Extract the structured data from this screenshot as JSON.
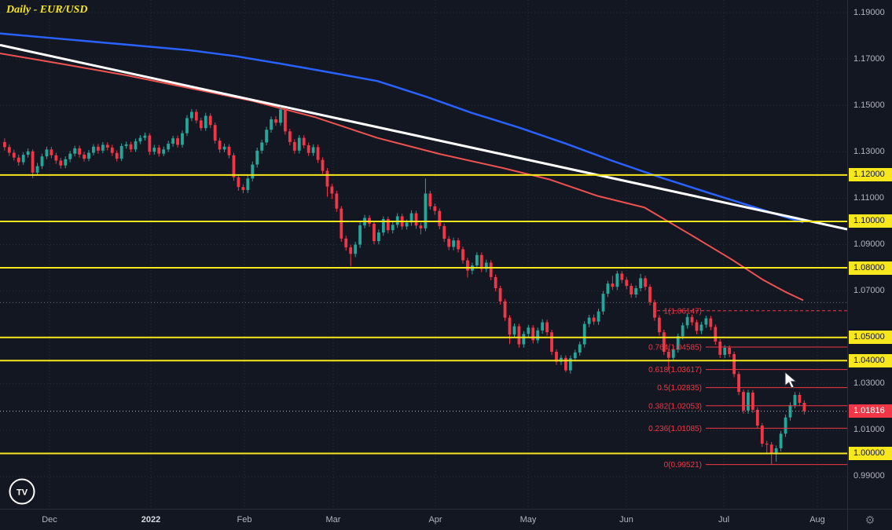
{
  "title": "Daily - EUR/USD",
  "icons": {
    "tradingview": "TV",
    "gear": "⚙"
  },
  "colors": {
    "background": "#131722",
    "grid": "#2a2e39",
    "up": "#26a69a",
    "down": "#f23645",
    "ma_fast_red": "#ef5350",
    "ma_slow_blue": "#2962ff",
    "trendline_white": "#ffffff",
    "level_yellow": "#f8e71c",
    "fib_red": "#f23645",
    "axis_text": "#b2b5be",
    "price_badge": "#f23645",
    "dotted_ray": "#6a7179",
    "current_price_line": "#b2b5be"
  },
  "price_axis": {
    "labels": [
      {
        "text": "1.19000",
        "value": 1.19,
        "style": "plain"
      },
      {
        "text": "1.17000",
        "value": 1.17,
        "style": "plain"
      },
      {
        "text": "1.15000",
        "value": 1.15,
        "style": "plain"
      },
      {
        "text": "1.13000",
        "value": 1.13,
        "style": "plain"
      },
      {
        "text": "1.12000",
        "value": 1.12,
        "style": "yellow"
      },
      {
        "text": "1.11000",
        "value": 1.11,
        "style": "plain"
      },
      {
        "text": "1.10000",
        "value": 1.1,
        "style": "yellow"
      },
      {
        "text": "1.09000",
        "value": 1.09,
        "style": "plain"
      },
      {
        "text": "1.08000",
        "value": 1.08,
        "style": "yellow"
      },
      {
        "text": "1.07000",
        "value": 1.07,
        "style": "plain"
      },
      {
        "text": "1.05000",
        "value": 1.05,
        "style": "yellow"
      },
      {
        "text": "1.04000",
        "value": 1.04,
        "style": "yellow"
      },
      {
        "text": "1.03000",
        "value": 1.03,
        "style": "plain"
      },
      {
        "text": "1.01816",
        "value": 1.01816,
        "style": "price"
      },
      {
        "text": "1.01000",
        "value": 1.01,
        "style": "plain"
      },
      {
        "text": "1.00000",
        "value": 1.0,
        "style": "yellow"
      },
      {
        "text": "0.99000",
        "value": 0.99,
        "style": "plain"
      }
    ]
  },
  "time_axis": {
    "labels": [
      {
        "text": "Dec",
        "x": 63,
        "year": false
      },
      {
        "text": "2022",
        "x": 192,
        "year": true
      },
      {
        "text": "Feb",
        "x": 311,
        "year": false
      },
      {
        "text": "Mar",
        "x": 424,
        "year": false
      },
      {
        "text": "Apr",
        "x": 554,
        "year": false
      },
      {
        "text": "May",
        "x": 672,
        "year": false
      },
      {
        "text": "Jun",
        "x": 797,
        "year": false
      },
      {
        "text": "Jul",
        "x": 921,
        "year": false
      },
      {
        "text": "Aug",
        "x": 1040,
        "year": false
      }
    ]
  },
  "chart_data": {
    "type": "candlestick",
    "symbol": "EUR/USD",
    "timeframe": "Daily",
    "ylim": [
      0.976,
      1.195
    ],
    "grid_values": [
      1.19,
      1.17,
      1.15,
      1.13,
      1.11,
      1.09,
      1.07,
      1.03,
      1.01,
      0.99
    ],
    "yellow_levels": [
      1.12,
      1.1,
      1.08,
      1.05,
      1.04,
      1.0
    ],
    "dotted_ray_level": 1.065,
    "current_price": 1.01816,
    "fib_levels": [
      {
        "label": "1(1.06147)",
        "value": 1.06147,
        "style": "dashed"
      },
      {
        "label": "0.764(1.04585)",
        "value": 1.04585,
        "style": "solid"
      },
      {
        "label": "0.618(1.03617)",
        "value": 1.03617,
        "style": "solid"
      },
      {
        "label": "0.5(1.02835)",
        "value": 1.02835,
        "style": "solid"
      },
      {
        "label": "0.382(1.02053)",
        "value": 1.02053,
        "style": "solid"
      },
      {
        "label": "0.236(1.01085)",
        "value": 1.01085,
        "style": "solid"
      },
      {
        "label": "0(0.99521)",
        "value": 0.99521,
        "style": "solid"
      }
    ],
    "trendline": {
      "x1": 0,
      "v1": 1.176,
      "x2": 1078,
      "v2": 1.0966
    },
    "ma_blue": [
      [
        0,
        1.181
      ],
      [
        80,
        1.1786
      ],
      [
        160,
        1.1762
      ],
      [
        240,
        1.1738
      ],
      [
        300,
        1.1712
      ],
      [
        360,
        1.1678
      ],
      [
        420,
        1.1642
      ],
      [
        480,
        1.1605
      ],
      [
        540,
        1.154
      ],
      [
        600,
        1.1468
      ],
      [
        660,
        1.1405
      ],
      [
        720,
        1.1335
      ],
      [
        780,
        1.126
      ],
      [
        840,
        1.119
      ],
      [
        900,
        1.1125
      ],
      [
        950,
        1.1072
      ],
      [
        1000,
        1.1018
      ],
      [
        1022,
        1.0996
      ]
    ],
    "ma_red": [
      [
        0,
        1.1724
      ],
      [
        80,
        1.1678
      ],
      [
        160,
        1.163
      ],
      [
        240,
        1.1575
      ],
      [
        320,
        1.152
      ],
      [
        400,
        1.145
      ],
      [
        480,
        1.136
      ],
      [
        560,
        1.129
      ],
      [
        640,
        1.123
      ],
      [
        700,
        1.118
      ],
      [
        760,
        1.111
      ],
      [
        820,
        1.106
      ],
      [
        880,
        1.094
      ],
      [
        930,
        1.0838
      ],
      [
        970,
        1.075
      ],
      [
        1000,
        1.0695
      ],
      [
        1022,
        1.066
      ]
    ],
    "candles": [
      [
        1.1342,
        1.1358,
        1.1305,
        1.132
      ],
      [
        1.132,
        1.1332,
        1.1282,
        1.1296
      ],
      [
        1.1296,
        1.1309,
        1.1262,
        1.1275
      ],
      [
        1.1275,
        1.1288,
        1.124,
        1.1255
      ],
      [
        1.1255,
        1.1298,
        1.1243,
        1.1287
      ],
      [
        1.1287,
        1.1315,
        1.1275,
        1.1302
      ],
      [
        1.1302,
        1.131,
        1.1186,
        1.121
      ],
      [
        1.121,
        1.1252,
        1.1198,
        1.1238
      ],
      [
        1.1238,
        1.1292,
        1.1226,
        1.128
      ],
      [
        1.128,
        1.1322,
        1.1268,
        1.131
      ],
      [
        1.131,
        1.1321,
        1.1272,
        1.1285
      ],
      [
        1.1285,
        1.1296,
        1.1248,
        1.1262
      ],
      [
        1.1262,
        1.1274,
        1.1228,
        1.1241
      ],
      [
        1.1241,
        1.128,
        1.1229,
        1.1268
      ],
      [
        1.1268,
        1.1304,
        1.1255,
        1.1292
      ],
      [
        1.1292,
        1.1326,
        1.128,
        1.1315
      ],
      [
        1.1315,
        1.1327,
        1.1275,
        1.1288
      ],
      [
        1.1288,
        1.13,
        1.1258,
        1.127
      ],
      [
        1.127,
        1.1308,
        1.1259,
        1.1296
      ],
      [
        1.1296,
        1.1333,
        1.1284,
        1.1322
      ],
      [
        1.1322,
        1.1334,
        1.1292,
        1.1305
      ],
      [
        1.1305,
        1.1342,
        1.1294,
        1.133
      ],
      [
        1.133,
        1.1341,
        1.1306,
        1.1318
      ],
      [
        1.1318,
        1.133,
        1.1282,
        1.1295
      ],
      [
        1.1295,
        1.1306,
        1.1258,
        1.127
      ],
      [
        1.127,
        1.1336,
        1.126,
        1.1325
      ],
      [
        1.1325,
        1.1344,
        1.1313,
        1.1332
      ],
      [
        1.1332,
        1.1343,
        1.1298,
        1.131
      ],
      [
        1.131,
        1.1357,
        1.1299,
        1.1345
      ],
      [
        1.1345,
        1.1372,
        1.1333,
        1.136
      ],
      [
        1.136,
        1.1383,
        1.1348,
        1.137
      ],
      [
        1.137,
        1.138,
        1.1286,
        1.13
      ],
      [
        1.13,
        1.133,
        1.1287,
        1.1318
      ],
      [
        1.1318,
        1.1329,
        1.1279,
        1.1292
      ],
      [
        1.1292,
        1.1323,
        1.1281,
        1.131
      ],
      [
        1.131,
        1.1347,
        1.1299,
        1.1335
      ],
      [
        1.1335,
        1.1369,
        1.1322,
        1.1358
      ],
      [
        1.1358,
        1.137,
        1.1318,
        1.133
      ],
      [
        1.133,
        1.1392,
        1.1318,
        1.138
      ],
      [
        1.138,
        1.1458,
        1.1368,
        1.1445
      ],
      [
        1.1445,
        1.1484,
        1.1432,
        1.1472
      ],
      [
        1.1472,
        1.1483,
        1.1422,
        1.1435
      ],
      [
        1.1435,
        1.1447,
        1.139,
        1.1402
      ],
      [
        1.1402,
        1.1468,
        1.139,
        1.1455
      ],
      [
        1.1455,
        1.1466,
        1.1402,
        1.1415
      ],
      [
        1.1415,
        1.1426,
        1.1335,
        1.1348
      ],
      [
        1.1348,
        1.136,
        1.1296,
        1.131
      ],
      [
        1.131,
        1.1335,
        1.1298,
        1.1322
      ],
      [
        1.1322,
        1.1333,
        1.1272,
        1.1285
      ],
      [
        1.1285,
        1.1295,
        1.1175,
        1.119
      ],
      [
        1.119,
        1.1202,
        1.1132,
        1.1148
      ],
      [
        1.1148,
        1.116,
        1.1121,
        1.1135
      ],
      [
        1.1135,
        1.1198,
        1.1122,
        1.1185
      ],
      [
        1.1185,
        1.1258,
        1.1172,
        1.1245
      ],
      [
        1.1245,
        1.1318,
        1.1232,
        1.1305
      ],
      [
        1.1305,
        1.1352,
        1.1292,
        1.134
      ],
      [
        1.134,
        1.1408,
        1.1328,
        1.1395
      ],
      [
        1.1395,
        1.1452,
        1.1382,
        1.144
      ],
      [
        1.144,
        1.1453,
        1.1412,
        1.1425
      ],
      [
        1.1425,
        1.1495,
        1.1412,
        1.1482
      ],
      [
        1.1482,
        1.1489,
        1.1374,
        1.1388
      ],
      [
        1.1388,
        1.1399,
        1.1328,
        1.1342
      ],
      [
        1.1342,
        1.1354,
        1.1292,
        1.1305
      ],
      [
        1.1305,
        1.1372,
        1.1292,
        1.136
      ],
      [
        1.136,
        1.1371,
        1.1315,
        1.1328
      ],
      [
        1.1328,
        1.134,
        1.1282,
        1.1295
      ],
      [
        1.1295,
        1.1332,
        1.1282,
        1.132
      ],
      [
        1.132,
        1.1331,
        1.1252,
        1.1265
      ],
      [
        1.1265,
        1.1276,
        1.1204,
        1.1218
      ],
      [
        1.1218,
        1.123,
        1.1106,
        1.115
      ],
      [
        1.115,
        1.1162,
        1.1096,
        1.112
      ],
      [
        1.112,
        1.1132,
        1.1041,
        1.1055
      ],
      [
        1.1055,
        1.1066,
        1.0912,
        1.0926
      ],
      [
        1.0926,
        1.0938,
        1.0874,
        1.0888
      ],
      [
        1.0888,
        1.09,
        1.0806,
        1.086
      ],
      [
        1.086,
        1.0912,
        1.0846,
        1.09
      ],
      [
        1.09,
        1.0996,
        1.0886,
        1.0983
      ],
      [
        1.0983,
        1.1028,
        1.097,
        1.1015
      ],
      [
        1.1015,
        1.1027,
        1.0977,
        1.099
      ],
      [
        1.099,
        1.1002,
        1.0901,
        1.0915
      ],
      [
        1.0915,
        1.0965,
        1.0901,
        1.0952
      ],
      [
        1.0952,
        1.1022,
        1.0938,
        1.101
      ],
      [
        1.101,
        1.1021,
        1.0948,
        1.0962
      ],
      [
        1.0962,
        1.0998,
        1.0948,
        1.0985
      ],
      [
        1.0985,
        1.1035,
        1.0972,
        1.1022
      ],
      [
        1.1022,
        1.1033,
        1.0964,
        1.0978
      ],
      [
        1.0978,
        1.1008,
        1.0965,
        1.0995
      ],
      [
        1.0995,
        1.1048,
        1.0981,
        1.1035
      ],
      [
        1.1035,
        1.1046,
        1.0968,
        1.0982
      ],
      [
        1.0982,
        1.0994,
        1.0944,
        1.097
      ],
      [
        1.097,
        1.1185,
        1.0958,
        1.112
      ],
      [
        1.112,
        1.1132,
        1.1051,
        1.1065
      ],
      [
        1.1065,
        1.1077,
        1.1028,
        1.1045
      ],
      [
        1.1045,
        1.1056,
        1.0966,
        1.098
      ],
      [
        1.098,
        1.0991,
        1.0911,
        1.0925
      ],
      [
        1.0925,
        1.0937,
        1.0876,
        1.089
      ],
      [
        1.089,
        1.093,
        1.0875,
        1.0918
      ],
      [
        1.0918,
        1.0929,
        1.0866,
        1.088
      ],
      [
        1.088,
        1.0891,
        1.0818,
        1.0832
      ],
      [
        1.0832,
        1.0843,
        1.0758,
        1.0788
      ],
      [
        1.0788,
        1.0822,
        1.0772,
        1.081
      ],
      [
        1.081,
        1.0867,
        1.0796,
        1.0855
      ],
      [
        1.0855,
        1.0866,
        1.0781,
        1.0795
      ],
      [
        1.0795,
        1.0835,
        1.0781,
        1.0822
      ],
      [
        1.0822,
        1.0833,
        1.0746,
        1.076
      ],
      [
        1.076,
        1.0771,
        1.0698,
        1.0712
      ],
      [
        1.0712,
        1.0723,
        1.0641,
        1.0655
      ],
      [
        1.0655,
        1.0666,
        1.0571,
        1.0585
      ],
      [
        1.0585,
        1.0596,
        1.0471,
        1.0512
      ],
      [
        1.0512,
        1.056,
        1.0498,
        1.0548
      ],
      [
        1.0548,
        1.0559,
        1.0456,
        1.047
      ],
      [
        1.047,
        1.0527,
        1.0456,
        1.0515
      ],
      [
        1.0515,
        1.0554,
        1.0502,
        1.0542
      ],
      [
        1.0542,
        1.0553,
        1.0474,
        1.0488
      ],
      [
        1.0488,
        1.0542,
        1.0474,
        1.053
      ],
      [
        1.053,
        1.0578,
        1.0516,
        1.0565
      ],
      [
        1.0565,
        1.0576,
        1.0508,
        1.0522
      ],
      [
        1.0522,
        1.0533,
        1.0424,
        1.0438
      ],
      [
        1.0438,
        1.0449,
        1.0381,
        1.0395
      ],
      [
        1.0395,
        1.0424,
        1.0381,
        1.0412
      ],
      [
        1.0412,
        1.0423,
        1.035,
        1.0358
      ],
      [
        1.0358,
        1.0422,
        1.0344,
        1.041
      ],
      [
        1.041,
        1.0447,
        1.0396,
        1.0435
      ],
      [
        1.0435,
        1.0482,
        1.0421,
        1.047
      ],
      [
        1.047,
        1.057,
        1.0456,
        1.0558
      ],
      [
        1.0558,
        1.0597,
        1.0544,
        1.0585
      ],
      [
        1.0585,
        1.0598,
        1.0554,
        1.0568
      ],
      [
        1.0568,
        1.0624,
        1.0554,
        1.0612
      ],
      [
        1.0612,
        1.07,
        1.0598,
        1.0688
      ],
      [
        1.0688,
        1.0744,
        1.0674,
        1.0732
      ],
      [
        1.0732,
        1.0765,
        1.0704,
        1.0718
      ],
      [
        1.0718,
        1.0787,
        1.0704,
        1.0775
      ],
      [
        1.0775,
        1.0786,
        1.0734,
        1.0748
      ],
      [
        1.0748,
        1.076,
        1.0708,
        1.0722
      ],
      [
        1.0722,
        1.0733,
        1.0671,
        1.0685
      ],
      [
        1.0685,
        1.0724,
        1.0671,
        1.0712
      ],
      [
        1.0712,
        1.0774,
        1.0698,
        1.0755
      ],
      [
        1.0755,
        1.0766,
        1.0704,
        1.0718
      ],
      [
        1.0718,
        1.0729,
        1.0638,
        1.0652
      ],
      [
        1.0652,
        1.0663,
        1.0571,
        1.0585
      ],
      [
        1.0585,
        1.0596,
        1.0508,
        1.0522
      ],
      [
        1.0522,
        1.0533,
        1.0424,
        1.0438
      ],
      [
        1.0438,
        1.0449,
        1.0359,
        1.0412
      ],
      [
        1.0412,
        1.046,
        1.0398,
        1.0448
      ],
      [
        1.0448,
        1.0517,
        1.0434,
        1.0505
      ],
      [
        1.0505,
        1.0564,
        1.0491,
        1.0552
      ],
      [
        1.0552,
        1.0601,
        1.0538,
        1.0588
      ],
      [
        1.0588,
        1.0599,
        1.0551,
        1.0565
      ],
      [
        1.0565,
        1.0576,
        1.0514,
        1.0528
      ],
      [
        1.0528,
        1.0567,
        1.0514,
        1.0555
      ],
      [
        1.0555,
        1.0594,
        1.0541,
        1.0582
      ],
      [
        1.0582,
        1.0593,
        1.0531,
        1.0545
      ],
      [
        1.0545,
        1.0556,
        1.0468,
        1.0482
      ],
      [
        1.0482,
        1.0493,
        1.0411,
        1.0425
      ],
      [
        1.0425,
        1.0467,
        1.0411,
        1.0455
      ],
      [
        1.0455,
        1.0466,
        1.0414,
        1.0428
      ],
      [
        1.0428,
        1.0439,
        1.0328,
        1.0342
      ],
      [
        1.0342,
        1.0353,
        1.0251,
        1.0265
      ],
      [
        1.0265,
        1.0276,
        1.0171,
        1.0185
      ],
      [
        1.0185,
        1.0274,
        1.0171,
        1.0262
      ],
      [
        1.0262,
        1.0273,
        1.0174,
        1.0188
      ],
      [
        1.0188,
        1.0199,
        1.0106,
        1.012
      ],
      [
        1.012,
        1.0131,
        1.0028,
        1.0042
      ],
      [
        1.0042,
        1.0054,
        0.9998,
        1.0038
      ],
      [
        1.0038,
        1.0049,
        0.9952,
        0.9998
      ],
      [
        0.9998,
        1.0034,
        0.9964,
        1.0022
      ],
      [
        1.0022,
        1.0097,
        1.0008,
        1.0085
      ],
      [
        1.0085,
        1.0167,
        1.0071,
        1.0155
      ],
      [
        1.0155,
        1.022,
        1.0141,
        1.0208
      ],
      [
        1.0208,
        1.0264,
        1.0194,
        1.0252
      ],
      [
        1.0252,
        1.0263,
        1.0204,
        1.0218
      ],
      [
        1.0218,
        1.0229,
        1.0168,
        1.0182
      ]
    ]
  }
}
